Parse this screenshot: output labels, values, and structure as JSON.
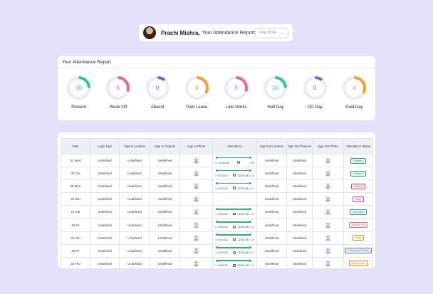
{
  "header": {
    "user_name": "Prachi Mishra,",
    "report_title": "Your Attendance Report",
    "month": "July 2024"
  },
  "summary": {
    "title": "Your Attendance Report",
    "stats": [
      {
        "label": "Present",
        "value": "10",
        "color": "#2ec4a6"
      },
      {
        "label": "Week Off",
        "value": "5",
        "color": "#f06292"
      },
      {
        "label": "Absent",
        "value": "0",
        "color": "#5a6ff0"
      },
      {
        "label": "Paid Leave",
        "value": "4",
        "color": "#ff9a2b"
      },
      {
        "label": "Late Marks",
        "value": "5",
        "color": "#f06292"
      },
      {
        "label": "Half Day",
        "value": "10",
        "color": "#2ec4a6"
      },
      {
        "label": "OD Day",
        "value": "0",
        "color": "#5a6ff0"
      },
      {
        "label": "Paid Day",
        "value": "4",
        "color": "#ff9a2b"
      }
    ]
  },
  "table": {
    "columns": [
      "Date",
      "Login Type",
      "Sign In Location",
      "Sign In Projects",
      "Sign In Photo",
      "Attendance",
      "Sign Out Location",
      "Sign Out Projects",
      "Sign Out Photo",
      "Attendance Status"
    ],
    "rows": [
      {
        "date": "31 Wed",
        "login_type": "Undefined",
        "sign_in_location": "Undefined",
        "sign_in_projects": "Undefined",
        "in_label": "In",
        "in_time": "12:00:52",
        "out_time": "",
        "out_label": "Out",
        "sign_out_location": "Undefined",
        "sign_out_projects": "Undefined",
        "status": "Present",
        "status_color": "#1aa56d"
      },
      {
        "date": "30 Tue",
        "login_type": "Undefined",
        "sign_in_location": "Undefined",
        "sign_in_projects": "Undefined",
        "in_label": "In",
        "in_time": "8:31:02",
        "out_time": "22:20:26",
        "out_label": "Out",
        "sign_out_location": "Undefined",
        "sign_out_projects": "Undefined",
        "status": "Present",
        "status_color": "#1aa56d"
      },
      {
        "date": "29 Mon",
        "login_type": "Undefined",
        "sign_in_location": "Undefined",
        "sign_in_projects": "Undefined",
        "in_label": "In",
        "in_time": "8:31:02",
        "out_time": "22:20:26",
        "out_label": "Out",
        "sign_out_location": "Undefined",
        "sign_out_projects": "Undefined",
        "status": "Absent",
        "status_color": "#e53935"
      },
      {
        "date": "28 Sun",
        "login_type": "Undefined",
        "sign_in_location": "Undefined",
        "sign_in_projects": "Undefined",
        "in_label": "",
        "in_time": "",
        "out_time": "",
        "out_label": "",
        "sign_out_location": "Undefined",
        "sign_out_projects": "Undefined",
        "status": "Jolly",
        "status_color": "#b04fd8"
      },
      {
        "date": "27 Sat",
        "login_type": "Undefined",
        "sign_in_location": "Undefined",
        "sign_in_projects": "Undefined",
        "in_label": "In",
        "in_time": "8:31:02",
        "out_time": "22:20:26",
        "out_label": "Out",
        "sign_out_location": "Undefined",
        "sign_out_projects": "Undefined",
        "status": "Mismatch",
        "status_color": "#2196c4"
      },
      {
        "date": "26 Fri",
        "login_type": "Undefined",
        "sign_in_location": "Undefined",
        "sign_in_projects": "Undefined",
        "in_label": "In",
        "in_time": "8:31:02",
        "out_time": "22:20:26",
        "out_label": "Out",
        "sign_out_location": "Undefined",
        "sign_out_projects": "Undefined",
        "status": "Weekly Off",
        "status_color": "#ef6a6a"
      },
      {
        "date": "25 Thu",
        "login_type": "Undefined",
        "sign_in_location": "Undefined",
        "sign_in_projects": "Undefined",
        "in_label": "In",
        "in_time": "8:31:02",
        "out_time": "22:20:26",
        "out_label": "Out",
        "sign_out_location": "Undefined",
        "sign_out_projects": "Undefined",
        "status": "Daily",
        "status_color": "#b9a71c"
      },
      {
        "date": "26 Fri",
        "login_type": "Undefined",
        "sign_in_location": "Undefined",
        "sign_in_projects": "Undefined",
        "in_label": "In",
        "in_time": "8:31:02",
        "out_time": "22:20:26",
        "out_label": "Out",
        "sign_out_location": "Undefined",
        "sign_out_projects": "Undefined",
        "status": "Company Holiday",
        "status_color": "#4f6ee0"
      },
      {
        "date": "25 Thu",
        "login_type": "Undefined",
        "sign_in_location": "Undefined",
        "sign_in_projects": "Undefined",
        "in_label": "In",
        "in_time": "8:31:02",
        "out_time": "22:20:26",
        "out_label": "Out",
        "sign_out_location": "Undefined",
        "sign_out_projects": "Undefined",
        "status": "Paid Leave",
        "status_color": "#f08a1c"
      }
    ]
  }
}
